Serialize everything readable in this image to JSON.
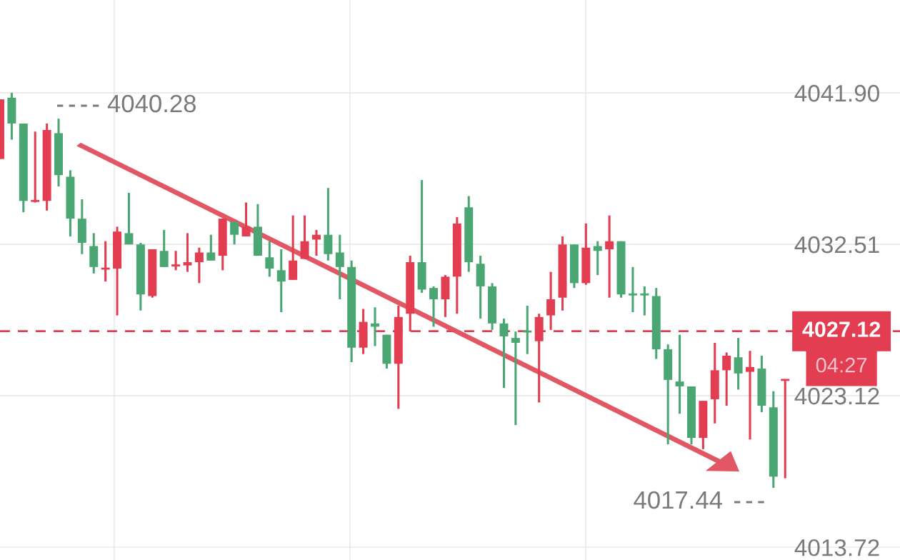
{
  "chart_data": {
    "type": "candlestick",
    "categories": [
      null,
      null,
      null,
      null,
      null,
      null,
      null,
      null,
      null,
      null,
      null,
      null,
      null,
      null,
      null,
      null,
      null,
      null,
      null,
      null,
      null,
      null,
      null,
      null,
      null,
      null,
      null,
      null,
      null,
      null,
      null,
      null,
      null,
      null,
      null,
      null,
      null,
      null,
      null,
      null,
      null,
      null,
      null,
      null,
      null,
      null,
      null,
      null,
      null,
      null,
      null,
      null,
      null,
      null,
      null,
      null,
      null,
      null,
      null,
      null,
      null,
      null,
      null,
      null,
      null,
      null,
      null,
      null
    ],
    "ohlc": [
      [
        4037.8,
        4041.5,
        4037.8,
        4041.5
      ],
      [
        4041.6,
        4041.9,
        4039.0,
        4040.0
      ],
      [
        4040.0,
        4040.0,
        4034.5,
        4035.2
      ],
      [
        4035.2,
        4039.5,
        4035.1,
        4035.2
      ],
      [
        4035.2,
        4040.0,
        4034.6,
        4039.6
      ],
      [
        4039.4,
        4040.3,
        4036.1,
        4036.8
      ],
      [
        4036.7,
        4037.1,
        4033.0,
        4034.1
      ],
      [
        4034.1,
        4035.3,
        4031.9,
        4032.6
      ],
      [
        4032.4,
        4033.2,
        4030.7,
        4031.1
      ],
      [
        4031.0,
        4032.7,
        4030.2,
        4031.0
      ],
      [
        4031.0,
        4033.6,
        4028.1,
        4033.3
      ],
      [
        4033.2,
        4035.7,
        4032.5,
        4032.5
      ],
      [
        4032.5,
        4032.6,
        4028.4,
        4029.4
      ],
      [
        4029.3,
        4032.2,
        4029.2,
        4032.2
      ],
      [
        4032.1,
        4033.4,
        4031.1,
        4031.1
      ],
      [
        4031.2,
        4032.1,
        4030.9,
        4031.2
      ],
      [
        4031.2,
        4033.2,
        4030.8,
        4031.4
      ],
      [
        4031.4,
        4032.3,
        4030.1,
        4032.0
      ],
      [
        4032.0,
        4033.1,
        4031.5,
        4031.5
      ],
      [
        4031.8,
        4034.1,
        4030.9,
        4034.1
      ],
      [
        4033.9,
        4033.9,
        4032.5,
        4033.1
      ],
      [
        4033.0,
        4035.1,
        4033.0,
        4033.6
      ],
      [
        4033.6,
        4035.0,
        4031.8,
        4031.8
      ],
      [
        4031.7,
        4032.7,
        4030.5,
        4031.0
      ],
      [
        4030.9,
        4032.2,
        4028.3,
        4030.2
      ],
      [
        4030.3,
        4034.3,
        4030.3,
        4031.5
      ],
      [
        4031.6,
        4034.3,
        4031.6,
        4032.7
      ],
      [
        4032.8,
        4033.4,
        4031.8,
        4033.1
      ],
      [
        4033.1,
        4036.0,
        4031.5,
        4031.9
      ],
      [
        4032.0,
        4033.1,
        4029.1,
        4031.1
      ],
      [
        4031.1,
        4031.5,
        4025.2,
        4026.1
      ],
      [
        4026.1,
        4028.5,
        4025.7,
        4027.7
      ],
      [
        4027.6,
        4028.6,
        4026.2,
        4027.4
      ],
      [
        4026.9,
        4026.9,
        4024.8,
        4025.1
      ],
      [
        4025.1,
        4028.7,
        4022.3,
        4028.0
      ],
      [
        4028.2,
        4031.8,
        4027.1,
        4031.4
      ],
      [
        4031.4,
        4036.5,
        4029.5,
        4029.7
      ],
      [
        4029.8,
        4029.9,
        4027.4,
        4029.1
      ],
      [
        4029.1,
        4030.6,
        4028.0,
        4030.5
      ],
      [
        4030.5,
        4034.2,
        4028.2,
        4033.8
      ],
      [
        4034.8,
        4035.5,
        4030.8,
        4031.4
      ],
      [
        4031.3,
        4031.8,
        4027.9,
        4029.9
      ],
      [
        4029.9,
        4030.1,
        4027.2,
        4027.6
      ],
      [
        4027.6,
        4027.9,
        4023.6,
        4026.8
      ],
      [
        4026.7,
        4027.1,
        4021.3,
        4026.4
      ],
      [
        4027.1,
        4028.7,
        4025.7,
        4027.1
      ],
      [
        4026.5,
        4028.2,
        4022.7,
        4028.0
      ],
      [
        4028.1,
        4030.8,
        4027.2,
        4029.1
      ],
      [
        4029.2,
        4033.0,
        4028.4,
        4032.5
      ],
      [
        4032.5,
        4032.5,
        4029.8,
        4030.1
      ],
      [
        4030.1,
        4033.8,
        4030.0,
        4032.3
      ],
      [
        4032.4,
        4032.7,
        4030.6,
        4032.1
      ],
      [
        4032.2,
        4034.3,
        4029.2,
        4032.7
      ],
      [
        4032.7,
        4032.7,
        4029.2,
        4029.4
      ],
      [
        4029.4,
        4031.1,
        4028.3,
        4029.4
      ],
      [
        4029.4,
        4029.9,
        4028.1,
        4029.4
      ],
      [
        4029.3,
        4029.8,
        4025.4,
        4026.0
      ],
      [
        4026.0,
        4026.3,
        4020.1,
        4024.1
      ],
      [
        4024.0,
        4026.9,
        4022.0,
        4023.7
      ],
      [
        4023.7,
        4023.7,
        4020.1,
        4020.5
      ],
      [
        4020.5,
        4022.8,
        4019.8,
        4022.8
      ],
      [
        4022.9,
        4026.4,
        4021.4,
        4024.7
      ],
      [
        4024.7,
        4025.8,
        4022.5,
        4025.6
      ],
      [
        4025.5,
        4026.7,
        4023.5,
        4024.5
      ],
      [
        4024.6,
        4025.9,
        4020.4,
        4024.9
      ],
      [
        4024.8,
        4025.6,
        4022.1,
        4022.5
      ],
      [
        4022.4,
        4023.4,
        4017.4,
        4018.1
      ],
      [
        4024.1,
        4024.1,
        4018.0,
        4024.1
      ]
    ],
    "colors": [
      "#e23d50",
      "#4aa673",
      "#4aa673",
      "#e23d50",
      "#e23d50",
      "#4aa673",
      "#4aa673",
      "#4aa673",
      "#4aa673",
      "#e23d50",
      "#e23d50",
      "#4aa673",
      "#4aa673",
      "#e23d50",
      "#4aa673",
      "#e23d50",
      "#e23d50",
      "#e23d50",
      "#4aa673",
      "#e23d50",
      "#4aa673",
      "#e23d50",
      "#4aa673",
      "#4aa673",
      "#4aa673",
      "#e23d50",
      "#e23d50",
      "#e23d50",
      "#4aa673",
      "#4aa673",
      "#4aa673",
      "#e23d50",
      "#4aa673",
      "#4aa673",
      "#e23d50",
      "#e23d50",
      "#4aa673",
      "#4aa673",
      "#e23d50",
      "#e23d50",
      "#4aa673",
      "#4aa673",
      "#4aa673",
      "#4aa673",
      "#4aa673",
      "#4aa673",
      "#e23d50",
      "#e23d50",
      "#e23d50",
      "#4aa673",
      "#e23d50",
      "#4aa673",
      "#e23d50",
      "#4aa673",
      "#4aa673",
      "#4aa673",
      "#4aa673",
      "#4aa673",
      "#4aa673",
      "#4aa673",
      "#e23d50",
      "#e23d50",
      "#e23d50",
      "#4aa673",
      "#e23d50",
      "#4aa673",
      "#4aa673",
      "#e23d50"
    ],
    "ylim": [
      4012.93,
      4047.66
    ],
    "yticks": [
      {
        "value": 4041.9,
        "label": "4041.90"
      },
      {
        "value": 4032.51,
        "label": "4032.51"
      },
      {
        "value": 4023.12,
        "label": "4023.12"
      },
      {
        "value": 4013.72,
        "label": "4013.72"
      }
    ],
    "tick_labels": "y",
    "grid": true,
    "ref_lines": [
      {
        "axis": "y",
        "value": 4027.12,
        "label": "4027.12",
        "color": "#e23d50",
        "line_style": "dashed"
      }
    ],
    "annotations": [
      "4040.28",
      "4017.44",
      "04:27"
    ]
  }
}
